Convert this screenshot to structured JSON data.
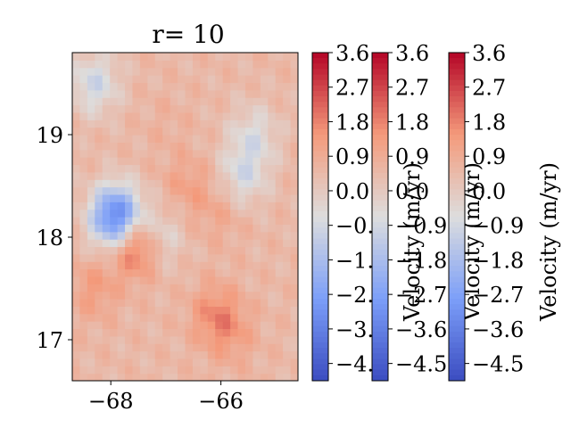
{
  "chart_data": {
    "type": "heatmap",
    "title": "r= 10",
    "xlabel": "",
    "ylabel": "",
    "x_ticks": [
      "−68",
      "−66"
    ],
    "x_tick_values": [
      -68,
      -66
    ],
    "y_ticks": [
      "17",
      "18",
      "19"
    ],
    "y_tick_values": [
      17,
      18,
      19
    ],
    "xlim": [
      -68.7,
      -64.6
    ],
    "ylim": [
      16.6,
      19.8
    ],
    "colormap": "coolwarm",
    "colorbars": [
      {
        "label": "Velocity (m/yr)",
        "range": [
          -4.95,
          3.6
        ],
        "ticks": [
          "3.6",
          "2.7",
          "1.8",
          "0.9",
          "0.0",
          "−0.9",
          "−1.8",
          "−2.7",
          "−3.6",
          "−4.5"
        ],
        "tick_values": [
          3.6,
          2.7,
          1.8,
          0.9,
          0.0,
          -0.9,
          -1.8,
          -2.7,
          -3.6,
          -4.5
        ]
      },
      {
        "label": "Velocity (m/yr)",
        "range": [
          -4.95,
          3.6
        ],
        "ticks": [
          "3.6",
          "2.7",
          "1.8",
          "0.9",
          "0.0",
          "−0.9",
          "−1.8",
          "−2.7",
          "−3.6",
          "−4.5"
        ],
        "tick_values": [
          3.6,
          2.7,
          1.8,
          0.9,
          0.0,
          -0.9,
          -1.8,
          -2.7,
          -3.6,
          -4.5
        ]
      },
      {
        "label": "Velocity (m/yr)",
        "range": [
          -4.95,
          3.6
        ],
        "ticks": [
          "3.6",
          "2.7",
          "1.8",
          "0.9",
          "0.0",
          "−0.9",
          "−1.8",
          "−2.7",
          "−3.6",
          "−4.5"
        ],
        "tick_values": [
          3.6,
          2.7,
          1.8,
          0.9,
          0.0,
          -0.9,
          -1.8,
          -2.7,
          -3.6,
          -4.5
        ]
      }
    ],
    "field_features": [
      {
        "x": -67.9,
        "y": 18.2,
        "value": -3.8
      },
      {
        "x": -67.2,
        "y": 18.0,
        "value": -1.2
      },
      {
        "x": -67.5,
        "y": 17.95,
        "value": 3.3
      },
      {
        "x": -66.6,
        "y": 18.5,
        "value": 1.2
      },
      {
        "x": -66.0,
        "y": 18.25,
        "value": 1.0
      },
      {
        "x": -66.1,
        "y": 17.25,
        "value": 1.6
      },
      {
        "x": -65.8,
        "y": 17.05,
        "value": 1.1
      },
      {
        "x": -68.3,
        "y": 17.5,
        "value": 1.3
      },
      {
        "x": -67.0,
        "y": 19.1,
        "value": 0.7
      },
      {
        "x": -68.3,
        "y": 19.5,
        "value": -1.0
      },
      {
        "x": -65.4,
        "y": 19.0,
        "value": -0.6
      },
      {
        "x": -65.6,
        "y": 18.6,
        "value": -0.8
      }
    ],
    "background_value": 0.5
  }
}
